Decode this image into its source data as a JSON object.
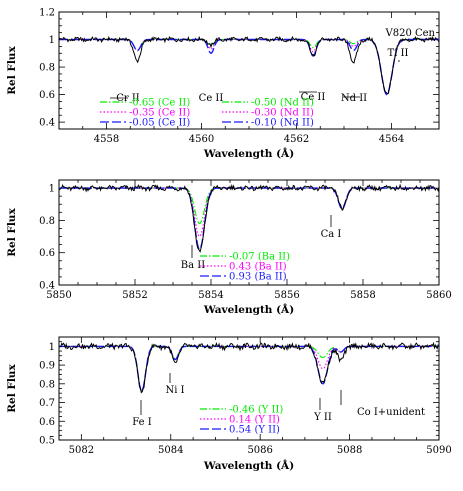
{
  "chart_data": [
    {
      "type": "line",
      "name": "panel-ce-nd",
      "star": "V820 Cen",
      "xlabel": "Wavelength (Å)",
      "ylabel": "Rel Flux",
      "xlim": [
        4557,
        4565
      ],
      "ylim": [
        0.35,
        1.2
      ],
      "xticks": [
        4558,
        4560,
        4562,
        4564
      ],
      "yticks": [
        0.4,
        0.6,
        0.8,
        1,
        1.2
      ],
      "ytick_labels": [
        "0.4",
        "0.6",
        "0.8",
        "1",
        "1.2"
      ],
      "lines": [
        {
          "center": 4558.65,
          "label": "Cr II",
          "depth_obs": 0.16,
          "depth_model": 0.08,
          "width": 0.1
        },
        {
          "center": 4560.2,
          "label": "Ce II",
          "depth_obs": 0.04,
          "depth_model": [
            0.04,
            0.07,
            0.1
          ],
          "width": 0.09,
          "model_series": "ce"
        },
        {
          "center": 4562.35,
          "label": "Ce II",
          "depth_obs": 0.12,
          "depth_model": [
            0.06,
            0.09,
            0.12
          ],
          "width": 0.09,
          "model_series": "ce"
        },
        {
          "center": 4563.2,
          "label": "Nd II",
          "depth_obs": 0.17,
          "depth_model": [
            0.03,
            0.05,
            0.08
          ],
          "width": 0.1,
          "model_series": "nd"
        },
        {
          "center": 4563.9,
          "label": "Ti II",
          "depth_obs": 0.4,
          "depth_model": 0.4,
          "width": 0.16
        }
      ],
      "legends": [
        {
          "id": "ce",
          "entries": [
            {
              "label": "-0.65 (Ce II)",
              "color": "#00ee00",
              "dash": "dash-dot"
            },
            {
              "label": "-0.35 (Ce II)",
              "color": "#ff00ff",
              "dash": "dotted"
            },
            {
              "label": "-0.05 (Ce II)",
              "color": "#1a1aff",
              "dash": "long-dash"
            }
          ]
        },
        {
          "id": "nd",
          "entries": [
            {
              "label": "-0.50 (Nd II)",
              "color": "#00ee00",
              "dash": "dash-dot"
            },
            {
              "label": "-0.30 (Nd II)",
              "color": "#ff00ff",
              "dash": "dotted"
            },
            {
              "label": "-0.10 (Nd II)",
              "color": "#1a1aff",
              "dash": "long-dash"
            }
          ]
        }
      ]
    },
    {
      "type": "line",
      "name": "panel-ba",
      "xlabel": "Wavelength (Å)",
      "ylabel": "Rel Flux",
      "xlim": [
        5850,
        5860
      ],
      "ylim": [
        0.4,
        1.05
      ],
      "xticks": [
        5850,
        5852,
        5854,
        5856,
        5858,
        5860
      ],
      "yticks": [
        0.4,
        0.6,
        0.8,
        1
      ],
      "ytick_labels": [
        "0.4",
        "0.6",
        "0.8",
        "1"
      ],
      "lines": [
        {
          "center": 5853.7,
          "label": "Ba II",
          "depth_obs": 0.4,
          "depth_model": [
            0.22,
            0.3,
            0.38
          ],
          "width": 0.18,
          "model_series": "ba"
        },
        {
          "center": 5857.45,
          "label": "Ca I",
          "depth_obs": 0.13,
          "depth_model": 0.13,
          "width": 0.14
        }
      ],
      "legends": [
        {
          "id": "ba",
          "entries": [
            {
              "label": "-0.07 (Ba II)",
              "color": "#00ee00",
              "dash": "dash-dot"
            },
            {
              "label": "0.43 (Ba II)",
              "color": "#ff00ff",
              "dash": "dotted"
            },
            {
              "label": "0.93 (Ba II)",
              "color": "#1a1aff",
              "dash": "long-dash"
            }
          ]
        }
      ]
    },
    {
      "type": "line",
      "name": "panel-y",
      "xlabel": "Wavelength (Å)",
      "ylabel": "Rel Flux",
      "xlim": [
        5081.5,
        5090
      ],
      "ylim": [
        0.5,
        1.05
      ],
      "xticks": [
        5082,
        5084,
        5086,
        5088,
        5090
      ],
      "yticks": [
        0.5,
        0.6,
        0.7,
        0.8,
        0.9,
        1
      ],
      "ytick_labels": [
        "0.5",
        "0.6",
        "0.7",
        "0.8",
        "0.9",
        "1"
      ],
      "lines": [
        {
          "center": 5083.35,
          "label": "Fe I",
          "depth_obs": 0.25,
          "depth_model": 0.24,
          "width": 0.12
        },
        {
          "center": 5084.1,
          "label": "Ni I",
          "depth_obs": 0.09,
          "depth_model": 0.07,
          "width": 0.1
        },
        {
          "center": 5087.4,
          "label": "Y II",
          "depth_obs": 0.2,
          "depth_model": [
            0.06,
            0.12,
            0.2
          ],
          "width": 0.15,
          "model_series": "y"
        },
        {
          "center": 5087.8,
          "label": "Co I+unident",
          "depth_obs": 0.08,
          "depth_model": 0.03,
          "width": 0.1
        }
      ],
      "legends": [
        {
          "id": "y",
          "entries": [
            {
              "label": "-0.46 (Y II)",
              "color": "#00ee00",
              "dash": "dash-dot"
            },
            {
              "label": "0.14 (Y II)",
              "color": "#ff00ff",
              "dash": "dotted"
            },
            {
              "label": "0.54 (Y II)",
              "color": "#1a1aff",
              "dash": "long-dash"
            }
          ]
        }
      ]
    }
  ]
}
